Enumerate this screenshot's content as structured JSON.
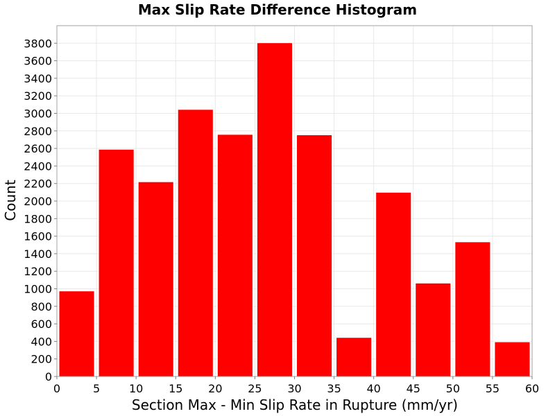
{
  "chart_data": {
    "type": "bar",
    "title": "Max Slip Rate Difference Histogram",
    "xlabel": "Section Max - Min Slip Rate in Rupture (mm/yr)",
    "ylabel": "Count",
    "bin_width": 5,
    "bins": [
      {
        "start": 0,
        "end": 5,
        "value": 975
      },
      {
        "start": 5,
        "end": 10,
        "value": 2590
      },
      {
        "start": 10,
        "end": 15,
        "value": 2220
      },
      {
        "start": 15,
        "end": 20,
        "value": 3045
      },
      {
        "start": 20,
        "end": 25,
        "value": 2760
      },
      {
        "start": 25,
        "end": 30,
        "value": 3805
      },
      {
        "start": 30,
        "end": 35,
        "value": 2755
      },
      {
        "start": 35,
        "end": 40,
        "value": 445
      },
      {
        "start": 40,
        "end": 45,
        "value": 2100
      },
      {
        "start": 45,
        "end": 50,
        "value": 1065
      },
      {
        "start": 50,
        "end": 55,
        "value": 1535
      },
      {
        "start": 55,
        "end": 60,
        "value": 395
      }
    ],
    "xlim": [
      0,
      60
    ],
    "ylim": [
      0,
      4000
    ],
    "x_ticks": [
      "0",
      "5",
      "10",
      "15",
      "20",
      "25",
      "30",
      "35",
      "40",
      "45",
      "50",
      "55",
      "60"
    ],
    "y_ticks": [
      "0",
      "200",
      "400",
      "600",
      "800",
      "1000",
      "1200",
      "1400",
      "1600",
      "1800",
      "2000",
      "2200",
      "2400",
      "2600",
      "2800",
      "3000",
      "3200",
      "3400",
      "3600",
      "3800"
    ],
    "bar_color": "#ff0000",
    "grid": true,
    "legend": "none"
  }
}
